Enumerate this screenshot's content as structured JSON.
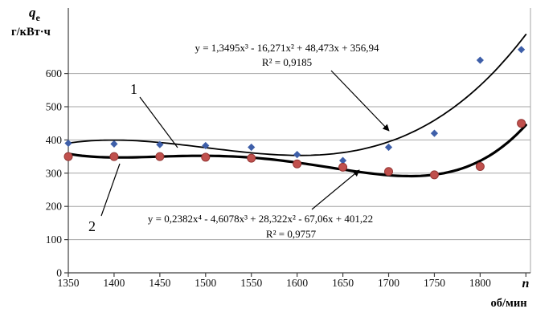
{
  "chart_data": {
    "type": "scatter",
    "grid": "horizontal",
    "legend": "none",
    "x_axis": {
      "label": "n",
      "unit": "об/мин",
      "ticks": [
        1350,
        1400,
        1450,
        1500,
        1550,
        1600,
        1650,
        1700,
        1750,
        1800
      ],
      "range": [
        1350,
        1855
      ]
    },
    "y_axis": {
      "label": "q",
      "label_sub": "e",
      "unit": "г/кВт·ч",
      "ticks": [
        0,
        100,
        200,
        300,
        400,
        500,
        600
      ],
      "range": [
        0,
        720
      ]
    },
    "series": [
      {
        "name": "1",
        "marker": "diamond",
        "color": "#3e5fa9",
        "x": [
          1350,
          1400,
          1450,
          1500,
          1550,
          1600,
          1650,
          1700,
          1750,
          1800,
          1845
        ],
        "y": [
          390,
          388,
          386,
          383,
          378,
          356,
          338,
          378,
          420,
          640,
          672
        ],
        "trend": {
          "color": "#000000",
          "width": 1.8,
          "equation": "y = 1,3495x³ - 16,271x² + 48,473x + 356,94",
          "r2": "R² = 0,9185",
          "coeffs": [
            356.94,
            48.473,
            -16.271,
            1.3495
          ]
        }
      },
      {
        "name": "2",
        "marker": "circle",
        "color": "#c0504d",
        "x": [
          1350,
          1400,
          1450,
          1500,
          1550,
          1600,
          1650,
          1700,
          1750,
          1800,
          1845
        ],
        "y": [
          350,
          350,
          350,
          348,
          345,
          328,
          318,
          305,
          295,
          320,
          450
        ],
        "trend": {
          "color": "#000000",
          "width": 3.2,
          "equation": "y = 0,2382x⁴ - 4,6078x³ + 28,322x² - 67,06x + 401,22",
          "r2": "R² = 0,9757",
          "coeffs": [
            401.22,
            -67.06,
            28.322,
            -4.6078,
            0.2382
          ]
        }
      }
    ]
  }
}
